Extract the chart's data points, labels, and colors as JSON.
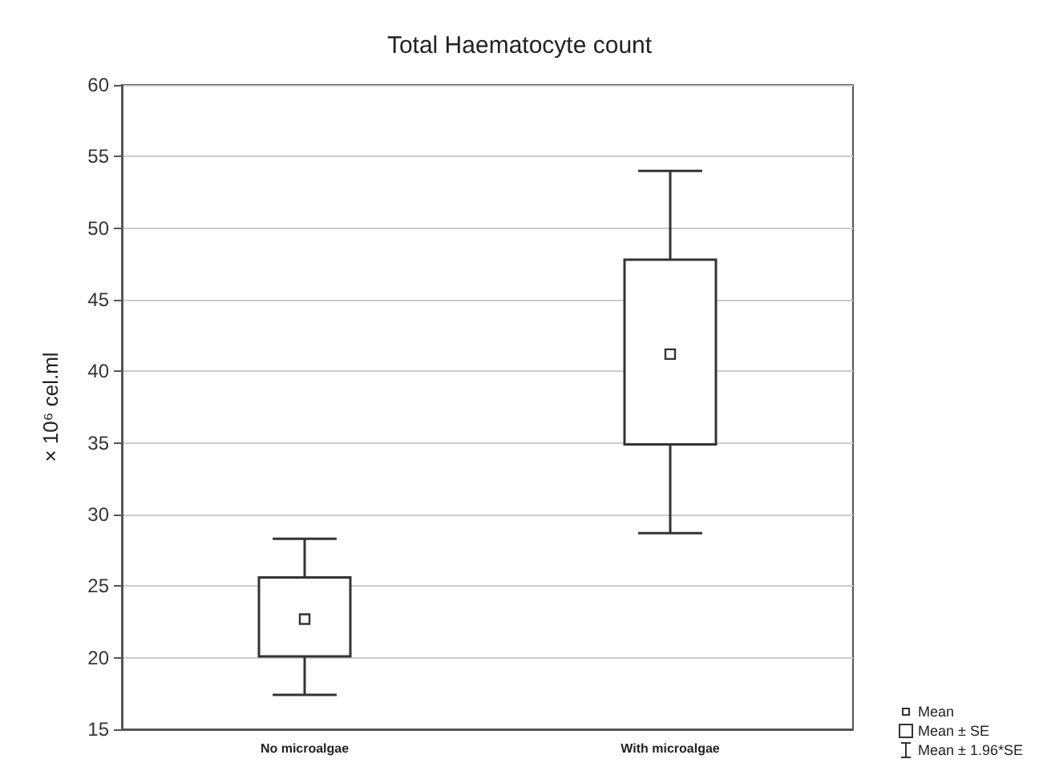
{
  "chart_data": {
    "type": "box",
    "title": "Total Haematocyte count",
    "ylabel": "× 10⁶ cel.ml",
    "categories": [
      "No microalgae",
      "With microalgae"
    ],
    "boxes": [
      {
        "low": 17.4,
        "q1": 20.1,
        "median": null,
        "q3": 25.6,
        "high": 28.3,
        "mean": 22.7
      },
      {
        "low": 28.7,
        "q1": 34.9,
        "median": null,
        "q3": 47.8,
        "high": 54,
        "mean": 41.2
      }
    ],
    "color": "#333333",
    "ylim": [
      15,
      60
    ],
    "yticks": [
      15,
      20,
      25,
      30,
      35,
      40,
      45,
      50,
      55,
      60
    ],
    "grid": "y",
    "annotations": [
      "Mean",
      "Mean ± SE",
      "Mean ± 1.96*SE"
    ]
  }
}
